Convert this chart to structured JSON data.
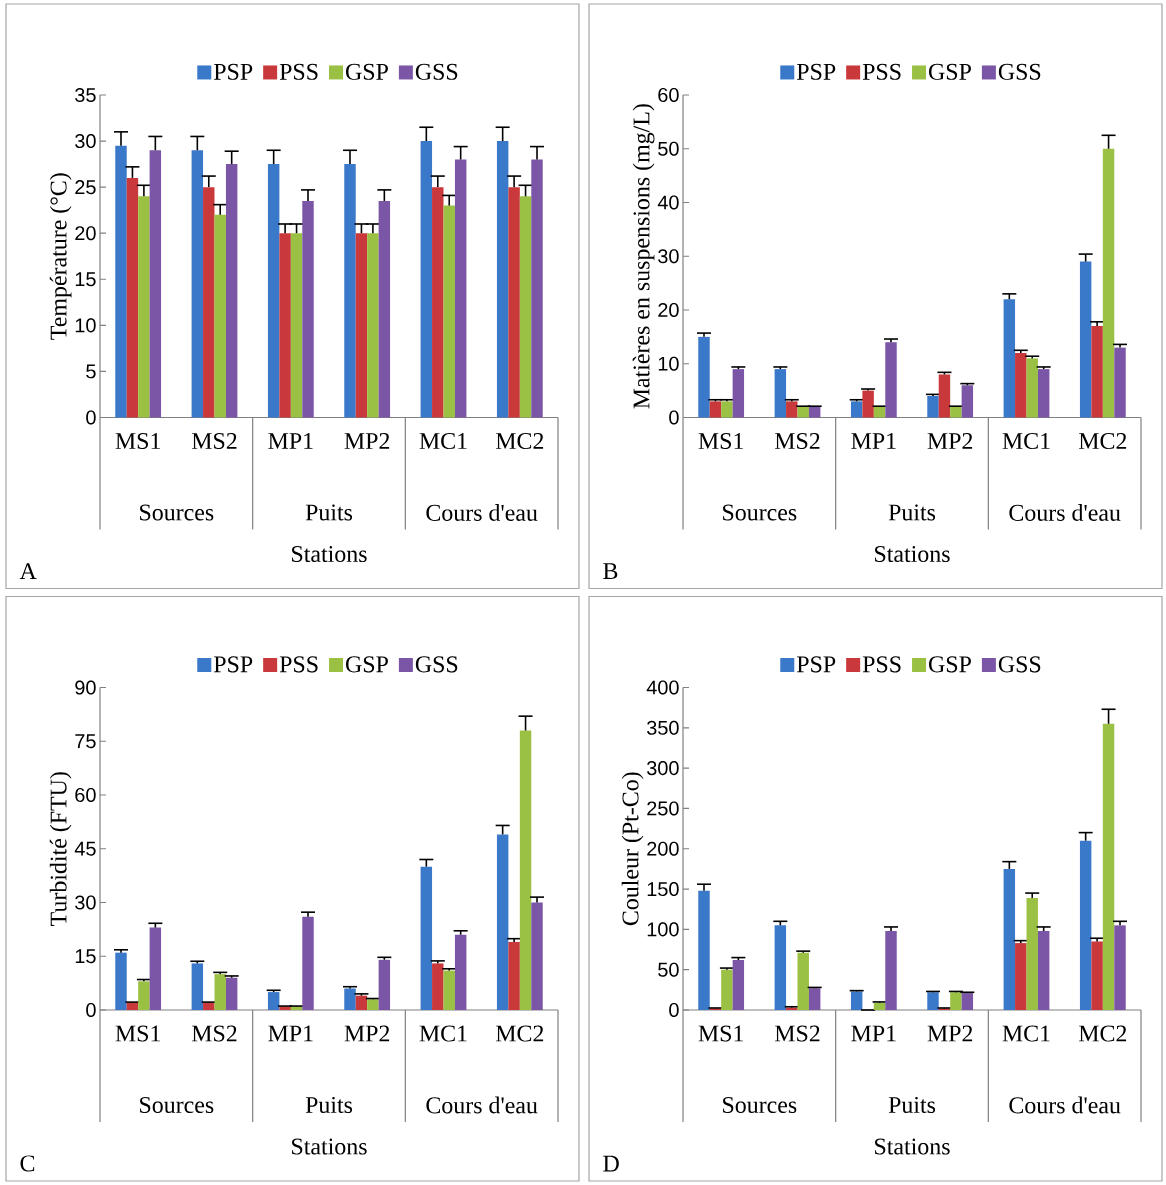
{
  "chart_data": [
    {
      "type": "bar",
      "ylabel": "Température (°C)",
      "xlabel": "Stations",
      "categories": [
        "MS1",
        "MS2",
        "MP1",
        "MP2",
        "MC1",
        "MC2"
      ],
      "ylim": [
        0,
        35
      ],
      "yticks": [
        0,
        5,
        10,
        15,
        20,
        25,
        30,
        35
      ],
      "legend": "top",
      "annotations": [
        "A",
        "Sources",
        "Puits",
        "Cours d'eau"
      ],
      "series": [
        {
          "name": "PSP",
          "color": "#3a78c9",
          "values": [
            29.5,
            29,
            27.5,
            27.5,
            30,
            30
          ],
          "errors": [
            1.5,
            1.5,
            1.5,
            1.5,
            1.5,
            1.5
          ]
        },
        {
          "name": "PSS",
          "color": "#c9383a",
          "values": [
            26,
            25,
            20,
            20,
            25,
            25
          ],
          "errors": [
            1.2,
            1.2,
            1,
            1,
            1.2,
            1.2
          ]
        },
        {
          "name": "GSP",
          "color": "#9bc144",
          "values": [
            24,
            22,
            20,
            20,
            23,
            24
          ],
          "errors": [
            1.2,
            1.1,
            1,
            1,
            1.1,
            1.2
          ]
        },
        {
          "name": "GSS",
          "color": "#7b56a6",
          "values": [
            29,
            27.5,
            23.5,
            23.5,
            28,
            28
          ],
          "errors": [
            1.5,
            1.4,
            1.2,
            1.2,
            1.4,
            1.4
          ]
        }
      ]
    },
    {
      "type": "bar",
      "ylabel": "Matières en suspensions (mg/L)",
      "xlabel": "Stations",
      "categories": [
        "MS1",
        "MS2",
        "MP1",
        "MP2",
        "MC1",
        "MC2"
      ],
      "ylim": [
        0,
        60
      ],
      "yticks": [
        0,
        10,
        20,
        30,
        40,
        50,
        60
      ],
      "legend": "top",
      "annotations": [
        "B",
        "Sources",
        "Puits",
        "Cours d'eau"
      ],
      "series": [
        {
          "name": "PSP",
          "color": "#3a78c9",
          "values": [
            15,
            9,
            3,
            4,
            22,
            29
          ],
          "errors": [
            0.7,
            0.4,
            0.3,
            0.3,
            1,
            1.4
          ]
        },
        {
          "name": "PSS",
          "color": "#c9383a",
          "values": [
            3,
            3,
            5,
            8,
            12,
            17
          ],
          "errors": [
            0.3,
            0.3,
            0.3,
            0.4,
            0.5,
            0.8
          ]
        },
        {
          "name": "GSP",
          "color": "#9bc144",
          "values": [
            3,
            2,
            2,
            2,
            11,
            50
          ],
          "errors": [
            0.3,
            0.1,
            0.1,
            0.1,
            0.4,
            2.5
          ]
        },
        {
          "name": "GSS",
          "color": "#7b56a6",
          "values": [
            9,
            2,
            14,
            6,
            9,
            13
          ],
          "errors": [
            0.4,
            0.1,
            0.6,
            0.3,
            0.4,
            0.6
          ]
        }
      ]
    },
    {
      "type": "bar",
      "ylabel": "Turbidité (FTU)",
      "xlabel": "Stations",
      "categories": [
        "MS1",
        "MS2",
        "MP1",
        "MP2",
        "MC1",
        "MC2"
      ],
      "ylim": [
        0,
        90
      ],
      "yticks": [
        0,
        15,
        30,
        45,
        60,
        75,
        90
      ],
      "legend": "top",
      "annotations": [
        "C",
        "Sources",
        "Puits",
        "Cours d'eau"
      ],
      "series": [
        {
          "name": "PSP",
          "color": "#3a78c9",
          "values": [
            16,
            13,
            5,
            6,
            40,
            49
          ],
          "errors": [
            0.8,
            0.6,
            0.5,
            0.5,
            2,
            2.5
          ]
        },
        {
          "name": "PSS",
          "color": "#c9383a",
          "values": [
            2,
            2,
            1,
            4,
            13,
            19
          ],
          "errors": [
            0.2,
            0.2,
            0.1,
            0.5,
            0.7,
            0.9
          ]
        },
        {
          "name": "GSP",
          "color": "#9bc144",
          "values": [
            8,
            10,
            1,
            3,
            11,
            78
          ],
          "errors": [
            0.5,
            0.5,
            0.1,
            0.2,
            0.5,
            4
          ]
        },
        {
          "name": "GSS",
          "color": "#7b56a6",
          "values": [
            23,
            9,
            26,
            14,
            21,
            30
          ],
          "errors": [
            1.2,
            0.5,
            1.3,
            0.7,
            1.1,
            1.5
          ]
        }
      ]
    },
    {
      "type": "bar",
      "ylabel": "Couleur (Pt-Co)",
      "xlabel": "Stations",
      "categories": [
        "MS1",
        "MS2",
        "MP1",
        "MP2",
        "MC1",
        "MC2"
      ],
      "ylim": [
        0,
        400
      ],
      "yticks": [
        0,
        50,
        100,
        150,
        200,
        250,
        300,
        350,
        400
      ],
      "legend": "top",
      "annotations": [
        "D",
        "Sources",
        "Puits",
        "Cours d'eau"
      ],
      "series": [
        {
          "name": "PSP",
          "color": "#3a78c9",
          "values": [
            148,
            105,
            23,
            22,
            175,
            210
          ],
          "errors": [
            8,
            5,
            1,
            1,
            9,
            10
          ]
        },
        {
          "name": "PSS",
          "color": "#c9383a",
          "values": [
            2,
            3,
            0,
            2,
            83,
            85
          ],
          "errors": [
            0.5,
            1,
            0,
            0.5,
            3,
            4
          ]
        },
        {
          "name": "GSP",
          "color": "#9bc144",
          "values": [
            50,
            71,
            9,
            22,
            139,
            355
          ],
          "errors": [
            2,
            2,
            1,
            1,
            6,
            18
          ]
        },
        {
          "name": "GSS",
          "color": "#7b56a6",
          "values": [
            62,
            27,
            98,
            21,
            98,
            105
          ],
          "errors": [
            3,
            1,
            5,
            1,
            5,
            5
          ]
        }
      ]
    }
  ]
}
